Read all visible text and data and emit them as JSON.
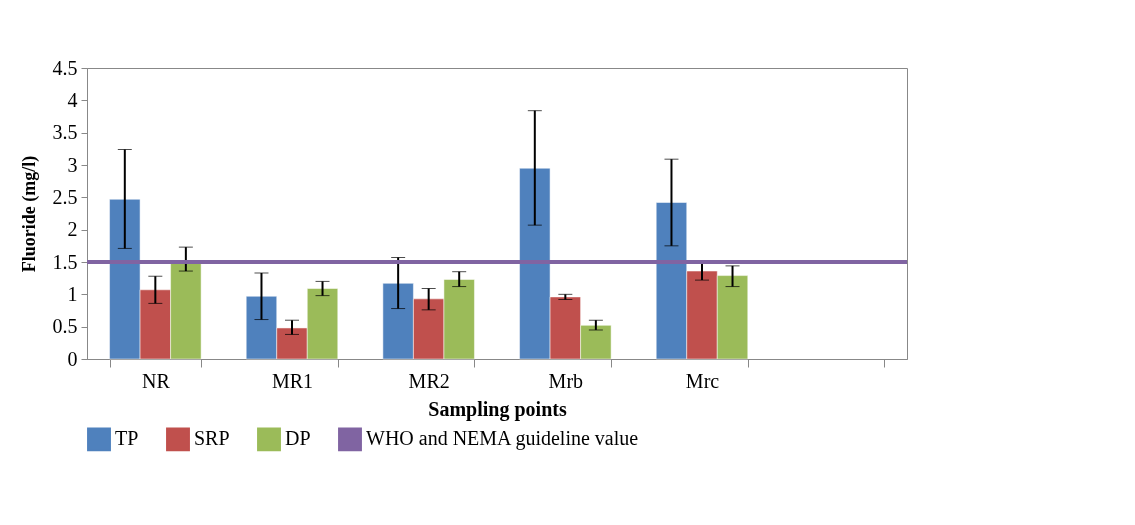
{
  "chart_data": {
    "type": "bar",
    "xlabel": "Sampling points",
    "ylabel": "Fluoride (mg/l)",
    "categories": [
      "NR",
      "MR1",
      "MR2",
      "Mrb",
      "Mrc",
      null
    ],
    "series": [
      {
        "name": "TP",
        "color": "#4f81bd",
        "values": [
          2.47,
          0.97,
          1.17,
          2.95,
          2.42,
          null
        ],
        "errors": [
          [
            1.71,
            3.24
          ],
          [
            0.61,
            1.33
          ],
          [
            0.78,
            1.57
          ],
          [
            2.07,
            3.84
          ],
          [
            1.75,
            3.09
          ],
          null
        ]
      },
      {
        "name": "SRP",
        "color": "#c0504d",
        "values": [
          1.07,
          0.48,
          0.93,
          0.96,
          1.36,
          null
        ],
        "errors": [
          [
            0.86,
            1.28
          ],
          [
            0.38,
            0.6
          ],
          [
            0.76,
            1.09
          ],
          [
            0.92,
            1.0
          ],
          [
            1.22,
            1.5
          ],
          null
        ]
      },
      {
        "name": "DP",
        "color": "#9bbb59",
        "values": [
          1.5,
          1.09,
          1.23,
          0.52,
          1.29,
          null
        ],
        "errors": [
          [
            1.36,
            1.73
          ],
          [
            0.98,
            1.2
          ],
          [
            1.12,
            1.35
          ],
          [
            0.45,
            0.6
          ],
          [
            1.12,
            1.44
          ],
          null
        ]
      }
    ],
    "ylim": [
      0,
      4.5
    ],
    "yticks": [
      0,
      0.5,
      1,
      1.5,
      2,
      2.5,
      3,
      3.5,
      4,
      4.5
    ],
    "ref_lines": [
      {
        "axis": "y",
        "value": 1.5,
        "label": "WHO and NEMA guideline value",
        "color": "#8064a2"
      }
    ],
    "legend": "bottom",
    "grid": false
  }
}
